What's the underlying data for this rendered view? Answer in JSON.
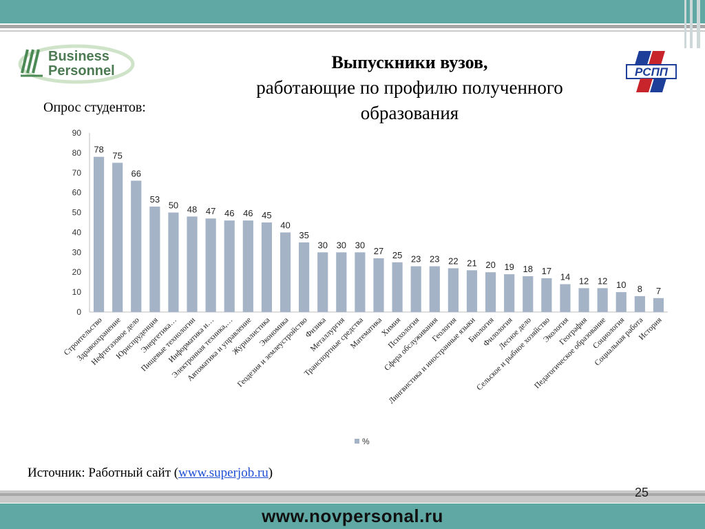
{
  "logo_left": {
    "line1": "Business",
    "line2": "Personnel"
  },
  "logo_right": {
    "text": "РСПП"
  },
  "heading": {
    "line1": "Выпускники вузов,",
    "line2": "работающие по профилю полученного",
    "line3": "образования"
  },
  "survey_label": "Опрос студентов:",
  "source": {
    "prefix": "Источник: Работный сайт (",
    "link": "www.superjob.ru",
    "suffix": ")"
  },
  "page_number": "25",
  "footer_url": "www.novpersonal.ru",
  "colors": {
    "bar": "#a5b3c6",
    "header_band": "#5fa8a4",
    "footer_band": "#5fa8a4"
  },
  "chart_data": {
    "type": "bar",
    "categories": [
      "Строительство",
      "Здравоохранение",
      "Нефтегазовое дело",
      "Юриспруденция",
      "Энергетика…",
      "Пищевые технологии",
      "Информатика и…",
      "Электронная техника,…",
      "Автоматика и управление",
      "Журналистика",
      "Экономика",
      "Геодезия и землеустройство",
      "Физика",
      "Металлургия",
      "Транспортные средства",
      "Математика",
      "Химия",
      "Психология",
      "Сфера обслуживания",
      "Геология",
      "Лингвистика и иностранные языки",
      "Биология",
      "Филология",
      "Лесное дело",
      "Сельское и рыбное хозяйство",
      "Экология",
      "География",
      "Педагогическое образование",
      "Социология",
      "Социальная работа",
      "История"
    ],
    "series": [
      {
        "name": "%",
        "values": [
          78,
          75,
          66,
          53,
          50,
          48,
          47,
          46,
          46,
          45,
          40,
          35,
          30,
          30,
          30,
          27,
          25,
          23,
          23,
          22,
          21,
          20,
          19,
          18,
          17,
          14,
          12,
          12,
          10,
          8,
          7
        ]
      }
    ],
    "ylim": [
      0,
      90
    ],
    "yticks": [
      0,
      10,
      20,
      30,
      40,
      50,
      60,
      70,
      80,
      90
    ],
    "legend_position": "bottom",
    "grid": false
  }
}
